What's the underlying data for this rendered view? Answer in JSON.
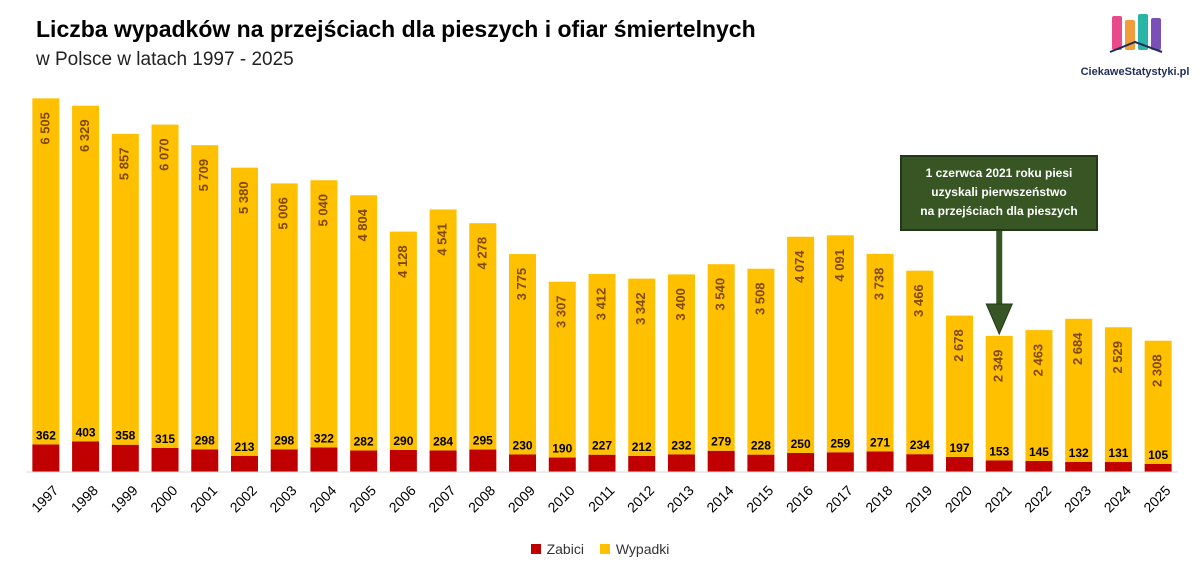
{
  "header": {
    "title": "Liczba wypadków na przejściach dla pieszych i ofiar śmiertelnych",
    "subtitle": "w Polsce w latach 1997 - 2025"
  },
  "logo": {
    "text": "CiekaweStatystyki.pl",
    "icon": "bookshelf-logo-icon"
  },
  "annotation": {
    "lines": [
      "1 czerwca 2021 roku piesi",
      "uzyskali pierwszeństwo",
      "na przejściach dla pieszych"
    ],
    "target_year": "2021",
    "color": "#375623"
  },
  "colors": {
    "zabici": "#c00000",
    "wypadki": "#ffc000",
    "label_wypadki": "#7f4a00",
    "label_zabici": "#000000"
  },
  "chart_data": {
    "type": "bar",
    "stacked": true,
    "categories": [
      "1997",
      "1998",
      "1999",
      "2000",
      "2001",
      "2002",
      "2003",
      "2004",
      "2005",
      "2006",
      "2007",
      "2008",
      "2009",
      "2010",
      "2011",
      "2012",
      "2013",
      "2014",
      "2015",
      "2016",
      "2017",
      "2018",
      "2019",
      "2020",
      "2021",
      "2022",
      "2023",
      "2024",
      "2025"
    ],
    "series": [
      {
        "name": "Zabici",
        "values": [
          362,
          403,
          358,
          315,
          298,
          213,
          298,
          322,
          282,
          290,
          284,
          295,
          230,
          190,
          227,
          212,
          232,
          279,
          228,
          250,
          259,
          271,
          234,
          197,
          153,
          145,
          132,
          131,
          105
        ],
        "labels": [
          "362",
          "403",
          "358",
          "315",
          "298",
          "213",
          "298",
          "322",
          "282",
          "290",
          "284",
          "295",
          "230",
          "190",
          "227",
          "212",
          "232",
          "279",
          "228",
          "250",
          "259",
          "271",
          "234",
          "197",
          "153",
          "145",
          "132",
          "131",
          "105"
        ]
      },
      {
        "name": "Wypadki",
        "values": [
          6505,
          6329,
          5857,
          6070,
          5709,
          5380,
          5006,
          5040,
          4804,
          4128,
          4541,
          4278,
          3775,
          3307,
          3412,
          3342,
          3400,
          3540,
          3508,
          4074,
          4091,
          3738,
          3466,
          2678,
          2349,
          2463,
          2684,
          2529,
          2308
        ],
        "labels": [
          "6 505",
          "6 329",
          "5 857",
          "6 070",
          "5 709",
          "5 380",
          "5 006",
          "5 040",
          "4 804",
          "4 128",
          "4 541",
          "4 278",
          "3 775",
          "3 307",
          "3 412",
          "3 342",
          "3 400",
          "3 540",
          "3 508",
          "4 074",
          "4 091",
          "3 738",
          "3 466",
          "2 678",
          "2 349",
          "2 463",
          "2 684",
          "2 529",
          "2 308"
        ]
      }
    ],
    "ylim": [
      0,
      6800
    ],
    "grid": false,
    "legend": "bottom",
    "xlabel": "",
    "ylabel": ""
  }
}
